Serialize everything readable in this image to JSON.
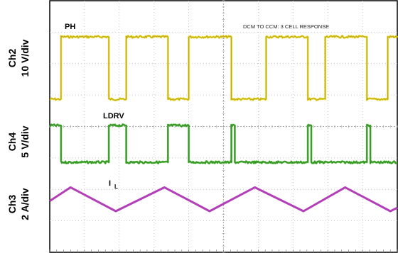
{
  "chart_data": {
    "type": "line",
    "title": "",
    "annotation": "DCM TO CCM: 3 CELL RESPONSE",
    "grid": true,
    "channels": [
      {
        "id": "ch2",
        "axis_line1": "Ch2",
        "axis_line2": "10 V/div",
        "signal_label": "PH",
        "color": "#e8d21c",
        "shape": "pulse",
        "low": 0,
        "high": 1,
        "pulses": [
          [
            0.03,
            0.17
          ],
          [
            0.22,
            0.34
          ],
          [
            0.4,
            0.52
          ],
          [
            0.62,
            0.74
          ],
          [
            0.79,
            0.91
          ],
          [
            0.97,
            1.0
          ]
        ]
      },
      {
        "id": "ch4",
        "axis_line1": "Ch4",
        "axis_line2": "5 V/div",
        "signal_label": "LDRV",
        "color": "#3fae2a",
        "shape": "pulse",
        "low": 0,
        "high": 1,
        "pulses": [
          [
            0.0,
            0.03
          ],
          [
            0.17,
            0.22
          ],
          [
            0.34,
            0.4
          ],
          [
            0.52,
            0.53
          ],
          [
            0.74,
            0.75
          ],
          [
            0.91,
            0.92
          ]
        ]
      },
      {
        "id": "ch3",
        "axis_line1": "Ch3",
        "axis_line2": "2 A/div",
        "signal_label": "I",
        "signal_label_sub": "L",
        "color": "#b23fb8",
        "shape": "triangle",
        "points": [
          [
            0.0,
            0.45
          ],
          [
            0.06,
            0.05
          ],
          [
            0.19,
            0.75
          ],
          [
            0.33,
            0.05
          ],
          [
            0.46,
            0.75
          ],
          [
            0.59,
            0.05
          ],
          [
            0.73,
            0.75
          ],
          [
            0.85,
            0.05
          ],
          [
            0.98,
            0.75
          ],
          [
            1.0,
            0.65
          ]
        ]
      }
    ]
  }
}
